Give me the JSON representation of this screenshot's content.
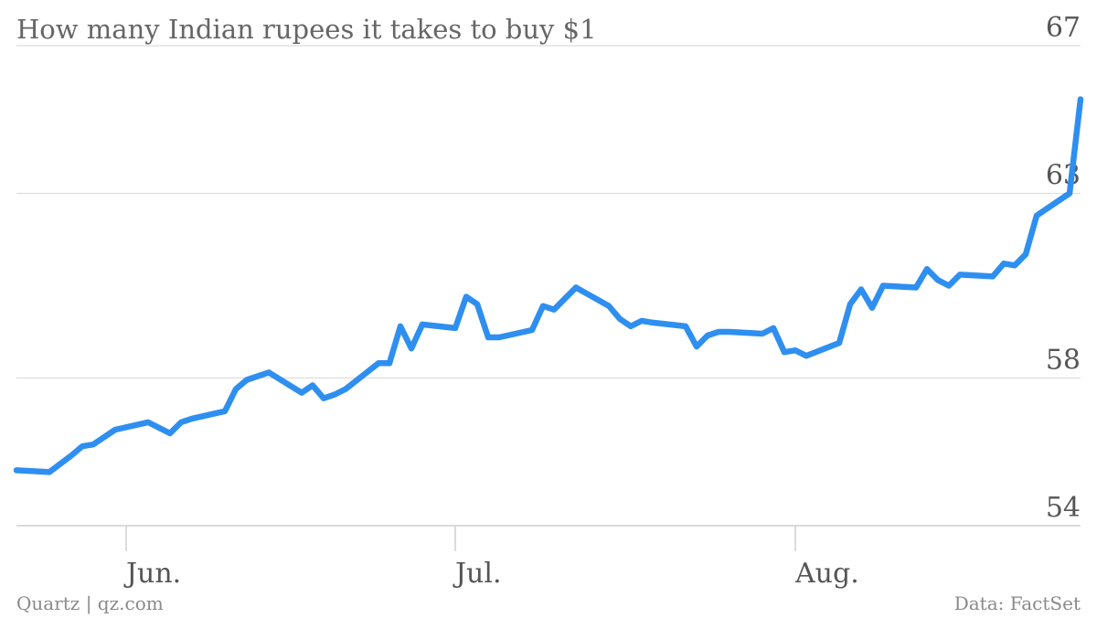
{
  "chart_data": {
    "type": "line",
    "title": "How many Indian rupees it takes to buy $1",
    "xlabel": "",
    "ylabel": "",
    "ylim": [
      54,
      67
    ],
    "y_ticks": [
      "54",
      "58",
      "63",
      "67"
    ],
    "x_ticks": [
      "Jun.",
      "Jul.",
      "Aug."
    ],
    "grid": true,
    "color": "#2e8ff0",
    "series": [
      {
        "x": [
          "2013-05-22",
          "2013-05-25",
          "2013-05-27",
          "2013-05-28",
          "2013-05-29",
          "2013-05-30",
          "2013-05-31",
          "2013-06-03",
          "2013-06-05",
          "2013-06-06",
          "2013-06-07",
          "2013-06-10",
          "2013-06-11",
          "2013-06-12",
          "2013-06-14",
          "2013-06-17",
          "2013-06-18",
          "2013-06-19",
          "2013-06-20",
          "2013-06-21",
          "2013-06-24",
          "2013-06-25",
          "2013-06-26",
          "2013-06-27",
          "2013-06-28",
          "2013-07-01",
          "2013-07-02",
          "2013-07-03",
          "2013-07-04",
          "2013-07-05",
          "2013-07-08",
          "2013-07-09",
          "2013-07-10",
          "2013-07-11",
          "2013-07-12",
          "2013-07-15",
          "2013-07-16",
          "2013-07-17",
          "2013-07-18",
          "2013-07-19",
          "2013-07-22",
          "2013-07-23",
          "2013-07-24",
          "2013-07-25",
          "2013-07-26",
          "2013-07-29",
          "2013-07-30",
          "2013-07-31",
          "2013-08-01",
          "2013-08-02",
          "2013-08-05",
          "2013-08-06",
          "2013-08-07",
          "2013-08-08",
          "2013-08-09",
          "2013-08-12",
          "2013-08-13",
          "2013-08-14",
          "2013-08-15",
          "2013-08-16",
          "2013-08-19",
          "2013-08-20",
          "2013-08-21",
          "2013-08-22",
          "2013-08-23",
          "2013-08-26",
          "2013-08-27"
        ],
        "values": [
          55.5,
          55.45,
          55.9,
          56.15,
          56.2,
          56.4,
          56.6,
          56.8,
          56.5,
          56.8,
          56.9,
          57.1,
          57.7,
          57.95,
          58.15,
          57.6,
          57.8,
          57.45,
          57.55,
          57.7,
          58.4,
          58.4,
          59.4,
          58.8,
          59.45,
          59.35,
          60.2,
          60.0,
          59.1,
          59.1,
          59.3,
          59.95,
          59.85,
          60.15,
          60.45,
          59.95,
          59.6,
          59.4,
          59.55,
          59.5,
          59.4,
          58.85,
          59.15,
          59.25,
          59.25,
          59.2,
          59.35,
          58.7,
          58.75,
          58.6,
          58.95,
          60.0,
          60.4,
          59.9,
          60.5,
          60.45,
          60.95,
          60.65,
          60.5,
          60.8,
          60.75,
          61.1,
          61.05,
          61.35,
          62.4,
          63.0,
          65.55
        ]
      }
    ]
  },
  "footer": {
    "source_left": "Quartz | qz.com",
    "source_right": "Data: FactSet"
  }
}
